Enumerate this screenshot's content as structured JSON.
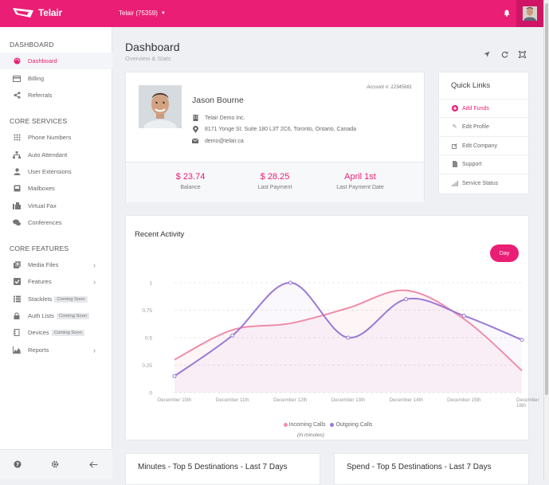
{
  "header": {
    "logo_text": "Telair",
    "account_switcher": "Telair (75359)"
  },
  "colors": {
    "accent": "#e91e74",
    "incoming": "#f08caa",
    "outgoing": "#9b78d6"
  },
  "sidebar": {
    "section_dashboard": "DASHBOARD",
    "section_core_services": "CORE SERVICES",
    "section_core_features": "CORE FEATURES",
    "items": [
      {
        "label": "Dashboard",
        "icon": "palette-icon"
      },
      {
        "label": "Billing",
        "icon": "credit-card-icon"
      },
      {
        "label": "Referrals",
        "icon": "share-icon"
      },
      {
        "label": "Phone Numbers",
        "icon": "keypad-icon"
      },
      {
        "label": "Auto Attendant",
        "icon": "sitemap-icon"
      },
      {
        "label": "User Extensions",
        "icon": "user-icon"
      },
      {
        "label": "Mailboxes",
        "icon": "inbox-icon"
      },
      {
        "label": "Virtual Fax",
        "icon": "fax-icon"
      },
      {
        "label": "Conferences",
        "icon": "chat-icon"
      },
      {
        "label": "Media Files",
        "icon": "media-icon"
      },
      {
        "label": "Features",
        "icon": "checkbox-icon"
      },
      {
        "label": "Stacklets",
        "icon": "list-icon",
        "badge": "Coming Soon"
      },
      {
        "label": "Auth Lists",
        "icon": "lock-icon",
        "badge": "Coming Soon"
      },
      {
        "label": "Devices",
        "icon": "device-icon",
        "badge": "Coming Soon"
      },
      {
        "label": "Reports",
        "icon": "area-chart-icon"
      }
    ]
  },
  "page": {
    "title": "Dashboard",
    "subtitle": "Overview & Stats"
  },
  "profile": {
    "name": "Jason Bourne",
    "account_number": "Account #: 12345681",
    "company": "Telair Demo Inc.",
    "address": "8171 Yonge St. Suite 180 L3T 2C6, Toronto, Ontario, Canada",
    "email": "demo@telair.ca",
    "stats": [
      {
        "value": "$ 23.74",
        "label": "Balance"
      },
      {
        "value": "$ 28.25",
        "label": "Last Payment"
      },
      {
        "value": "April 1st",
        "label": "Last Payment Date"
      }
    ]
  },
  "quick_links": {
    "title": "Quick Links",
    "items": [
      {
        "label": "Add Funds",
        "icon": "plus-circle-icon"
      },
      {
        "label": "Edit Profile",
        "icon": "pencil-icon"
      },
      {
        "label": "Edit Company",
        "icon": "edit-icon"
      },
      {
        "label": "Support",
        "icon": "document-icon"
      },
      {
        "label": "Service Status",
        "icon": "signal-icon"
      }
    ]
  },
  "activity": {
    "title": "Recent Activity",
    "range_button": "Day",
    "units": "(in minutes)"
  },
  "chart_data": {
    "type": "line",
    "x": [
      "December 10th",
      "December 11th",
      "December 12th",
      "December 13th",
      "December 14th",
      "December 15th",
      "December 16th"
    ],
    "y_ticks": [
      "0",
      "0.25",
      "0.5",
      "0.75",
      "1"
    ],
    "ylim": [
      0,
      1
    ],
    "grid": true,
    "legend_position": "bottom",
    "series": [
      {
        "name": "Incoming Calls",
        "values": [
          0.3,
          0.57,
          0.63,
          0.77,
          0.93,
          0.67,
          0.2
        ]
      },
      {
        "name": "Outgoing Calls",
        "values": [
          0.15,
          0.52,
          1.0,
          0.5,
          0.85,
          0.7,
          0.48
        ]
      }
    ]
  },
  "bottom_cards": [
    {
      "title": "Minutes - Top 5 Destinations - Last 7 Days"
    },
    {
      "title": "Spend - Top 5 Destinations - Last 7 Days"
    }
  ]
}
